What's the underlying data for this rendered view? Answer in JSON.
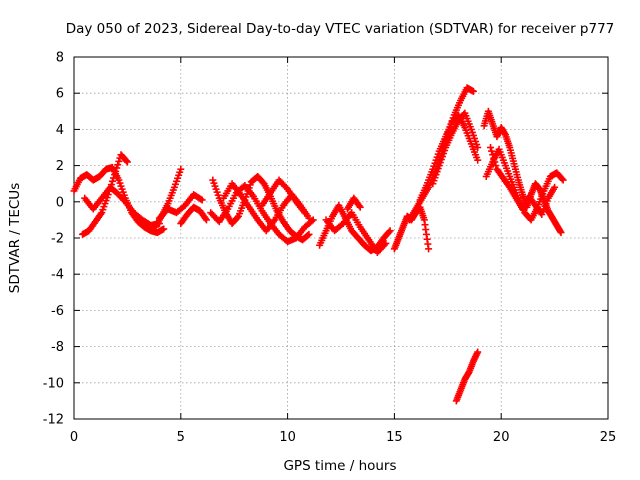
{
  "chart_data": {
    "type": "scatter",
    "title": "Day 050 of 2023, Sidereal Day-to-day VTEC variation (SDTVAR) for receiver p777",
    "xlabel": "GPS time / hours",
    "ylabel": "SDTVAR / TECUs",
    "xlim": [
      0,
      25
    ],
    "ylim": [
      -12,
      8
    ],
    "xticks": [
      0,
      5,
      10,
      15,
      20,
      25
    ],
    "yticks": [
      -12,
      -10,
      -8,
      -6,
      -4,
      -2,
      0,
      2,
      4,
      6,
      8
    ],
    "grid": true,
    "marker": "+",
    "color": "#ff0000",
    "series": [
      {
        "name": "SDTVAR",
        "segments": [
          {
            "x": [
              0.0,
              0.3,
              0.6,
              0.9,
              1.2,
              1.5,
              1.8,
              2.1,
              2.4,
              2.7,
              3.0,
              3.3,
              3.6,
              3.9,
              4.2
            ],
            "y": [
              0.6,
              1.3,
              1.5,
              1.2,
              1.4,
              1.8,
              1.9,
              1.2,
              0.2,
              -0.6,
              -1.1,
              -1.4,
              -1.6,
              -1.7,
              -1.5
            ]
          },
          {
            "x": [
              0.4,
              0.7,
              1.0,
              1.3,
              1.6,
              1.9,
              2.2,
              2.5
            ],
            "y": [
              -1.8,
              -1.6,
              -1.1,
              -0.6,
              0.4,
              1.5,
              2.6,
              2.2
            ]
          },
          {
            "x": [
              0.5,
              0.9,
              1.3,
              1.7,
              2.0,
              2.4,
              2.8,
              3.2,
              3.6,
              4.0
            ],
            "y": [
              0.2,
              -0.4,
              0.2,
              0.8,
              0.5,
              0.0,
              -0.6,
              -1.0,
              -1.3,
              -1.2
            ]
          },
          {
            "x": [
              3.8,
              4.1,
              4.4,
              4.7,
              5.0
            ],
            "y": [
              -1.4,
              -0.8,
              -0.1,
              0.8,
              1.8
            ]
          },
          {
            "x": [
              4.0,
              4.4,
              4.8,
              5.2,
              5.6,
              6.0
            ],
            "y": [
              -0.9,
              -0.4,
              -0.6,
              -0.2,
              0.4,
              0.1
            ]
          },
          {
            "x": [
              5.0,
              5.3,
              5.6,
              5.9,
              6.2
            ],
            "y": [
              -1.2,
              -0.7,
              -0.3,
              -0.5,
              -1.0
            ]
          },
          {
            "x": [
              6.5,
              6.8,
              7.1,
              7.4,
              7.7,
              8.0,
              8.3,
              8.6,
              8.9,
              9.2,
              9.5,
              9.8,
              10.1,
              10.4,
              10.7,
              11.0
            ],
            "y": [
              1.2,
              0.2,
              -0.6,
              -1.2,
              -0.8,
              0.1,
              1.1,
              1.4,
              1.0,
              0.3,
              -0.5,
              -1.1,
              -1.6,
              -1.9,
              -2.1,
              -1.8
            ]
          },
          {
            "x": [
              6.4,
              6.8,
              7.2,
              7.6,
              8.0,
              8.4,
              8.8,
              9.2,
              9.6,
              10.0,
              10.4,
              10.8,
              11.2
            ],
            "y": [
              -0.6,
              -1.1,
              -0.4,
              0.5,
              0.9,
              0.3,
              -0.5,
              -1.2,
              -1.8,
              -2.2,
              -2.0,
              -1.4,
              -1.0
            ]
          },
          {
            "x": [
              7.0,
              7.4,
              7.8,
              8.2,
              8.6,
              9.0,
              9.4,
              9.8,
              10.2,
              10.6,
              11.0
            ],
            "y": [
              0.2,
              1.0,
              0.4,
              -0.3,
              -1.0,
              -1.6,
              -1.0,
              -0.2,
              0.4,
              -0.2,
              -0.9
            ]
          },
          {
            "x": [
              8.8,
              9.2,
              9.6,
              10.0,
              10.4,
              10.8
            ],
            "y": [
              -0.2,
              0.5,
              1.2,
              0.7,
              0.0,
              -0.6
            ]
          },
          {
            "x": [
              11.5,
              11.8,
              12.1,
              12.4,
              12.7,
              13.0,
              13.3,
              13.6,
              13.9,
              14.2,
              14.5,
              14.8
            ],
            "y": [
              -2.4,
              -1.6,
              -0.8,
              -0.2,
              -0.9,
              -1.6,
              -2.0,
              -2.4,
              -2.7,
              -2.5,
              -2.0,
              -1.6
            ]
          },
          {
            "x": [
              11.8,
              12.2,
              12.6,
              13.0,
              13.4,
              13.8,
              14.2,
              14.6
            ],
            "y": [
              -1.0,
              -1.6,
              -1.2,
              -0.6,
              -1.4,
              -2.1,
              -2.8,
              -2.3
            ]
          },
          {
            "x": [
              12.8,
              13.1,
              13.4
            ],
            "y": [
              -0.4,
              0.2,
              -0.3
            ]
          },
          {
            "x": [
              15.0,
              15.2,
              15.4,
              15.6,
              15.8,
              16.0,
              16.2,
              16.4,
              16.6
            ],
            "y": [
              -2.6,
              -2.0,
              -1.4,
              -0.8,
              -1.0,
              -0.6,
              -0.3,
              -1.0,
              -2.6
            ]
          },
          {
            "x": [
              15.7,
              16.0,
              16.3,
              16.6,
              16.9,
              17.2,
              17.5,
              17.8,
              18.1,
              18.4,
              18.7
            ],
            "y": [
              -1.0,
              -0.4,
              0.2,
              0.8,
              1.6,
              2.6,
              3.8,
              4.8,
              5.6,
              6.3,
              6.1
            ]
          },
          {
            "x": [
              16.2,
              16.5,
              16.8,
              17.1,
              17.4,
              17.7,
              18.0,
              18.3,
              18.6,
              18.9
            ],
            "y": [
              0.1,
              0.9,
              1.8,
              2.8,
              3.6,
              4.4,
              4.8,
              4.1,
              3.2,
              2.3
            ]
          },
          {
            "x": [
              16.8,
              17.1,
              17.4,
              17.7,
              18.0,
              18.3,
              18.6,
              18.9
            ],
            "y": [
              1.0,
              2.0,
              3.0,
              3.8,
              4.5,
              4.9,
              4.0,
              3.0
            ]
          },
          {
            "x": [
              17.9,
              18.1,
              18.3,
              18.5,
              18.7,
              18.9
            ],
            "y": [
              -11.0,
              -10.4,
              -9.8,
              -9.4,
              -8.8,
              -8.3
            ]
          },
          {
            "x": [
              19.2,
              19.4,
              19.6,
              19.8,
              20.0,
              20.2,
              20.4,
              20.6,
              20.8,
              21.0,
              21.2,
              21.4,
              21.6,
              21.8,
              22.0,
              22.2,
              22.4,
              22.6,
              22.8
            ],
            "y": [
              4.2,
              5.0,
              4.3,
              3.6,
              4.1,
              3.7,
              3.0,
              2.1,
              1.2,
              0.4,
              -0.3,
              0.4,
              1.0,
              0.7,
              0.1,
              -0.5,
              -0.9,
              -1.3,
              -1.7
            ]
          },
          {
            "x": [
              19.3,
              19.6,
              19.9,
              20.2,
              20.5,
              20.8,
              21.1,
              21.4,
              21.7,
              22.0,
              22.3,
              22.6,
              22.9
            ],
            "y": [
              1.4,
              2.2,
              2.9,
              2.0,
              1.1,
              0.2,
              -0.6,
              -1.0,
              -0.3,
              0.6,
              1.4,
              1.6,
              1.2
            ]
          },
          {
            "x": [
              19.5,
              19.8,
              20.1,
              20.4,
              20.7,
              21.0,
              21.3,
              21.6,
              21.9,
              22.2,
              22.5
            ],
            "y": [
              3.0,
              1.8,
              1.3,
              0.8,
              0.2,
              -0.4,
              0.3,
              -0.2,
              -0.7,
              0.2,
              0.8
            ]
          }
        ]
      }
    ]
  }
}
